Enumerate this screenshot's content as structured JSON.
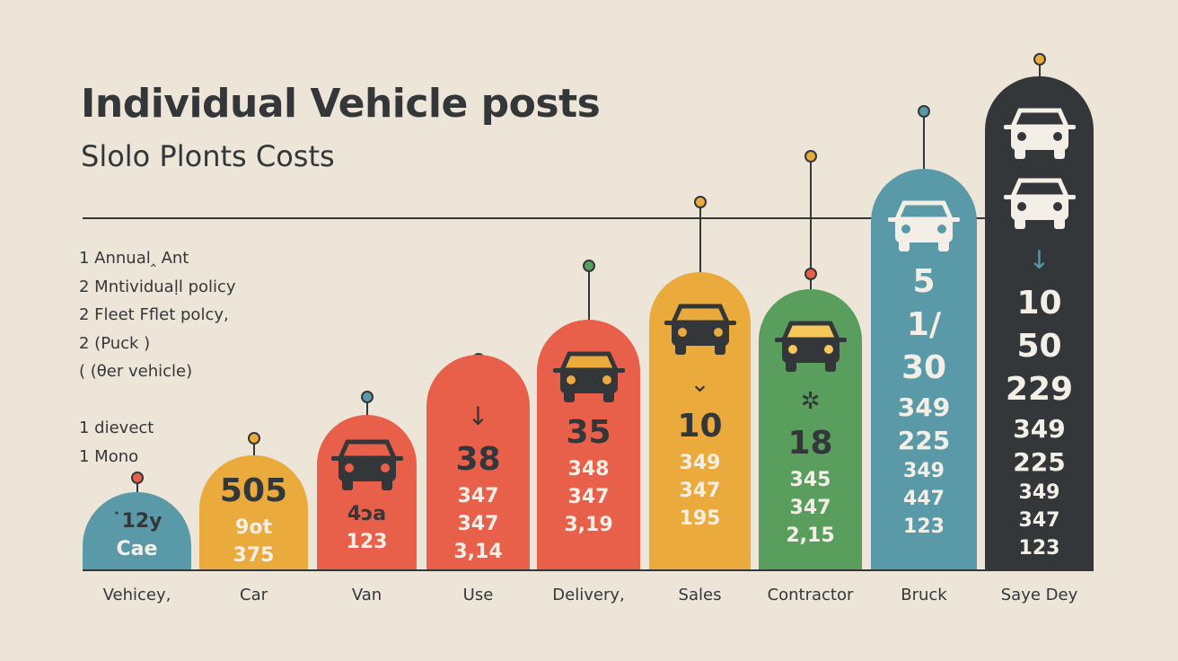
{
  "chart_data": {
    "type": "bar",
    "title": "Individual Vehicle posts",
    "subtitle": "Slolo Plonts Costs",
    "legend": [
      "1 Annual‸ Ant",
      "2 Mntividuaḷl policy",
      "2 Fleet Fflet polcy,",
      "2 (Puck )",
      "(   (θer vehicle)",
      "",
      "1 dievect",
      "1 Mono"
    ],
    "categories": [
      "Vehicey,",
      "Car",
      "Van",
      "Use",
      "Delivery,",
      "Sales",
      "Contractor",
      "Bruck",
      "Saye Dey"
    ],
    "bars": [
      {
        "color": "#5a9aa8",
        "pin": "#e8604a",
        "icons": [],
        "labels": [
          "˙12y",
          "Cae"
        ]
      },
      {
        "color": "#eaaa3c",
        "pin": "#eaaa3c",
        "icons": [],
        "labels": [
          "505",
          "9ot",
          "375"
        ]
      },
      {
        "color": "#e8604a",
        "pin": "#5a9aa8",
        "icons": [
          "car-icon"
        ],
        "labels": [
          "4ɔa",
          "123"
        ]
      },
      {
        "color": "#e8604a",
        "pin": "#e8604a",
        "icons": [
          "arrow-down-icon"
        ],
        "labels": [
          "38",
          "347",
          "347",
          "3,14"
        ]
      },
      {
        "color": "#e8604a",
        "pin": "#5a9e5e",
        "icons": [
          "car-icon"
        ],
        "labels": [
          "35",
          "348",
          "347",
          "3,19"
        ]
      },
      {
        "color": "#eaaa3c",
        "pin": "#eaaa3c",
        "icons": [
          "car-icon",
          "chevron-down-icon"
        ],
        "labels": [
          "10",
          "349",
          "347",
          "195"
        ]
      },
      {
        "color": "#5a9e5e",
        "pin": "#e8604a",
        "icons": [
          "car-icon",
          "star-icon"
        ],
        "labels": [
          "18",
          "345",
          "347",
          "2,15"
        ]
      },
      {
        "color": "#5a9aa8",
        "pin": "#5a9aa8",
        "icons": [
          "car-icon"
        ],
        "labels": [
          "5",
          "1/",
          "30",
          "349",
          "225",
          "349",
          "447",
          "123"
        ]
      },
      {
        "color": "#33373a",
        "pin": "#eaaa3c",
        "icons": [
          "car-icon",
          "car-icon",
          "arrow-down-icon"
        ],
        "labels": [
          "10",
          "50",
          "229",
          "349",
          "225",
          "349",
          "347",
          "123"
        ]
      }
    ],
    "grid": false
  }
}
